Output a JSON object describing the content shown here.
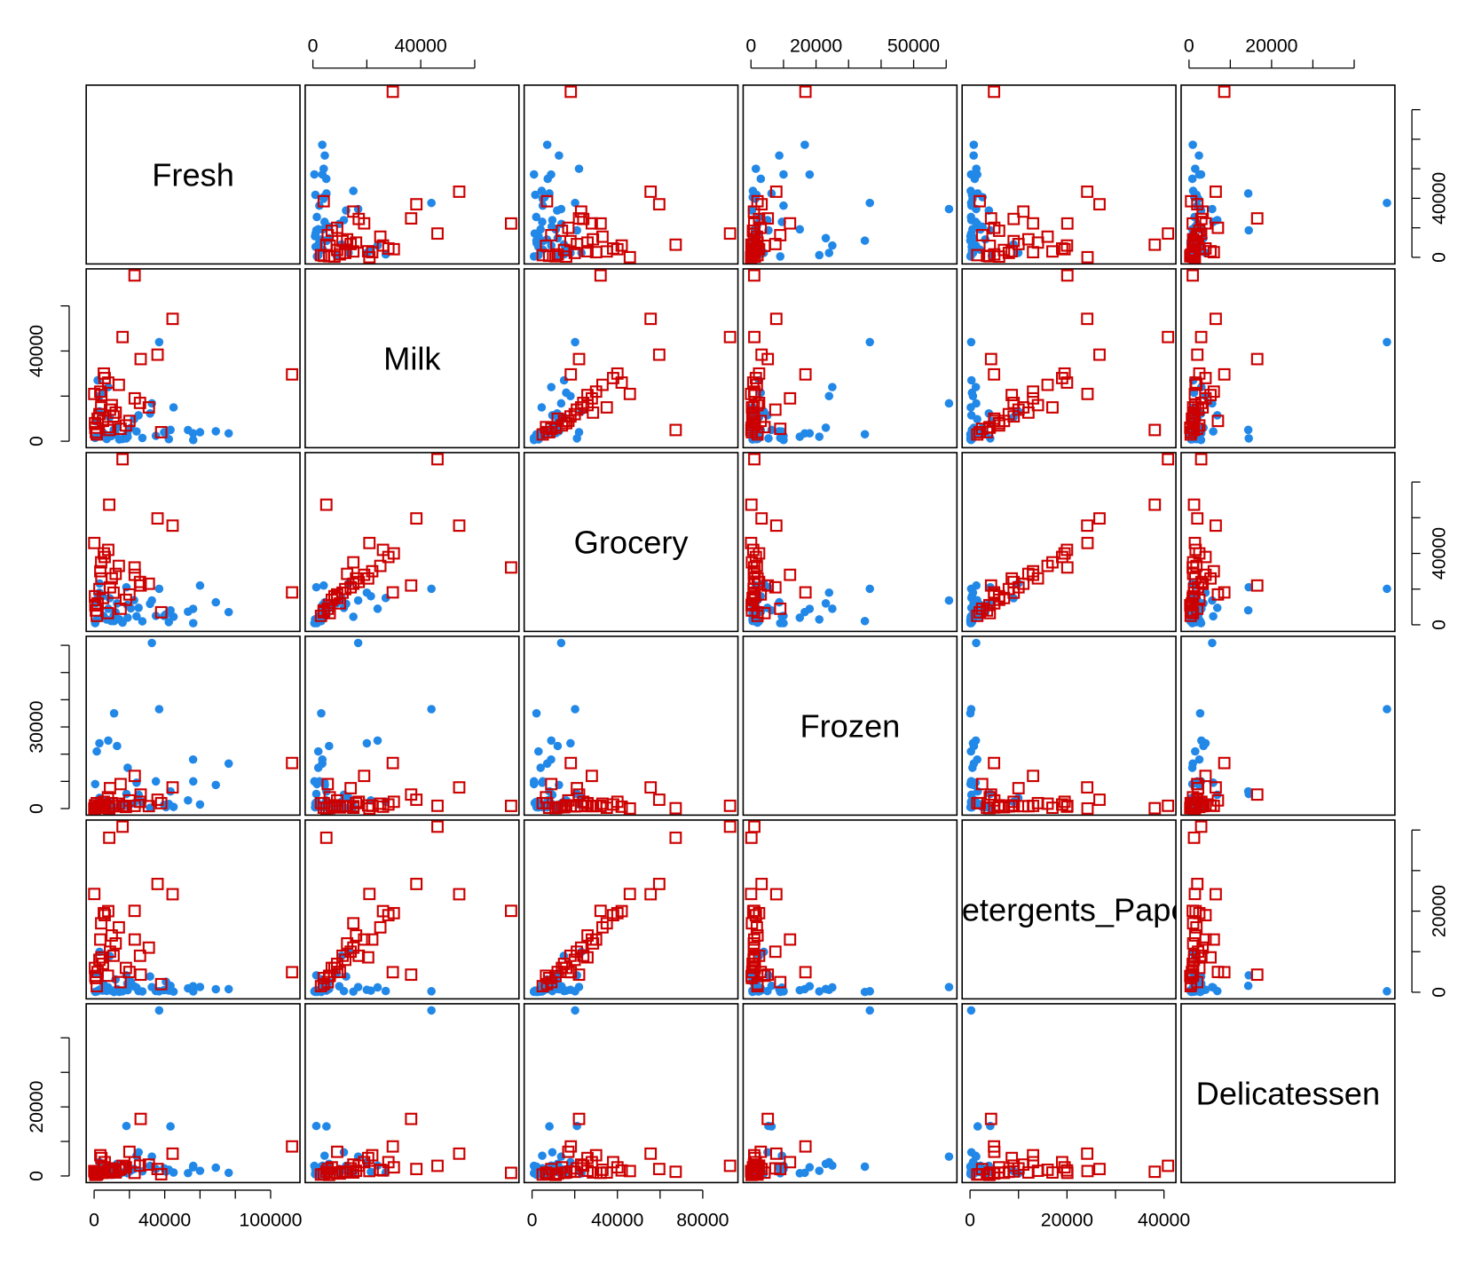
{
  "chart_data": {
    "type": "scatter-matrix",
    "variables": [
      {
        "name": "Fresh",
        "lim": [
          -4483,
          116637
        ],
        "xticks": [
          0,
          {
            "value": 20000,
            "label": null
          },
          40000,
          {
            "value": 60000,
            "label": null
          },
          {
            "value": 80000,
            "label": null
          },
          100000
        ],
        "yticks": [
          0,
          {
            "value": 20000,
            "label": null
          },
          40000,
          {
            "value": 60000,
            "label": null
          },
          {
            "value": 80000,
            "label": null
          },
          {
            "value": 100000,
            "label": null
          }
        ]
      },
      {
        "name": "Milk",
        "lim": [
          -2862,
          76415
        ],
        "xticks": [
          0,
          {
            "value": 20000,
            "label": null
          },
          40000,
          {
            "value": 60000,
            "label": null
          }
        ],
        "yticks": [
          0,
          {
            "value": 20000,
            "label": null
          },
          40000,
          {
            "value": 60000,
            "label": null
          }
        ]
      },
      {
        "name": "Grocery",
        "lim": [
          -3708,
          96491
        ],
        "xticks": [
          0,
          {
            "value": 20000,
            "label": null
          },
          40000,
          {
            "value": 60000,
            "label": null
          },
          80000
        ],
        "yticks": [
          0,
          {
            "value": 20000,
            "label": null
          },
          40000,
          {
            "value": 60000,
            "label": null
          },
          {
            "value": 80000,
            "label": null
          }
        ]
      },
      {
        "name": "Frozen",
        "lim": [
          -2409,
          63303
        ],
        "xticks": [
          0,
          {
            "value": 10000,
            "label": null
          },
          20000,
          {
            "value": 30000,
            "label": null
          },
          {
            "value": 40000,
            "label": null
          },
          50000,
          {
            "value": 60000,
            "label": null
          }
        ],
        "yticks": [
          0,
          {
            "value": 10000,
            "label": null
          },
          {
            "value": 20000,
            "label": null
          },
          30000,
          {
            "value": 40000,
            "label": null
          },
          {
            "value": 50000,
            "label": null
          },
          {
            "value": 60000,
            "label": null
          }
        ]
      },
      {
        "name": "Detergents_Paper",
        "lim": [
          -1630,
          42460
        ],
        "xticks": [
          0,
          {
            "value": 10000,
            "label": null
          },
          20000,
          {
            "value": 30000,
            "label": null
          },
          40000
        ],
        "yticks": [
          0,
          {
            "value": 10000,
            "label": null
          },
          20000,
          {
            "value": 30000,
            "label": null
          },
          {
            "value": 40000,
            "label": null
          }
        ]
      },
      {
        "name": "Delicatessen",
        "lim": [
          -1915,
          49861
        ],
        "xticks": [
          0,
          {
            "value": 10000,
            "label": null
          },
          20000,
          {
            "value": 30000,
            "label": null
          },
          {
            "value": 40000,
            "label": null
          }
        ],
        "yticks": [
          0,
          {
            "value": 10000,
            "label": null
          },
          20000,
          {
            "value": 30000,
            "label": null
          },
          {
            "value": 40000,
            "label": null
          }
        ]
      }
    ],
    "groups": [
      {
        "color": "#2288e8",
        "marker": "circle",
        "rows": [
          [
            32717,
            16784,
            13626,
            60869,
            1272,
            5609
          ],
          [
            36847,
            43950,
            20170,
            36534,
            239,
            47943
          ],
          [
            11314,
            3090,
            2062,
            35009,
            71,
            2698
          ],
          [
            76237,
            3473,
            7102,
            16538,
            778,
            918
          ],
          [
            68951,
            4411,
            12609,
            8692,
            751,
            2406
          ],
          [
            56159,
            555,
            902,
            10002,
            212,
            2916
          ],
          [
            56082,
            3504,
            8906,
            18028,
            1480,
            2498
          ],
          [
            53205,
            4959,
            7336,
            3012,
            967,
            818
          ],
          [
            43265,
            5025,
            8117,
            6312,
            1579,
            14351
          ],
          [
            18291,
            1266,
            21042,
            5373,
            4173,
            14472
          ],
          [
            40721,
            3916,
            5876,
            532,
            2587,
            1278
          ],
          [
            42312,
            926,
            1510,
            1718,
            410,
            1819
          ],
          [
            39679,
            3944,
            4955,
            1364,
            523,
            2235
          ],
          [
            31714,
            12319,
            11757,
            287,
            3881,
            2931
          ],
          [
            27329,
            1449,
            1947,
            2436,
            204,
            1333
          ],
          [
            25203,
            11487,
            9490,
            5065,
            284,
            6854
          ],
          [
            24025,
            4332,
            4757,
            9510,
            1145,
            5864
          ],
          [
            22647,
            9776,
            13779,
            1970,
            1477,
            2032
          ],
          [
            20782,
            5921,
            9212,
            1759,
            2568,
            1553
          ],
          [
            18815,
            3610,
            11107,
            1148,
            2134,
            2963
          ],
          [
            16117,
            1011,
            1234,
            2025,
            250,
            1016
          ],
          [
            14276,
            803,
            3045,
            485,
            100,
            518
          ],
          [
            12126,
            3199,
            6975,
            480,
            3140,
            545
          ],
          [
            11092,
            5008,
            5249,
            453,
            392,
            373
          ],
          [
            9670,
            2280,
            2112,
            520,
            402,
            347
          ],
          [
            8797,
            10646,
            14886,
            2471,
            8969,
            1438
          ],
          [
            7107,
            1012,
            2974,
            806,
            355,
            1043
          ],
          [
            5264,
            3683,
            5005,
            1057,
            2024,
            1130
          ],
          [
            3067,
            13240,
            23127,
            3941,
            9959,
            731
          ],
          [
            1020,
            8816,
            12121,
            134,
            4508,
            1080
          ],
          [
            2000,
            27000,
            15000,
            2500,
            300,
            1000
          ],
          [
            3000,
            20000,
            18000,
            24000,
            600,
            4000
          ],
          [
            8000,
            24000,
            9000,
            25000,
            1200,
            3000
          ],
          [
            1500,
            2000,
            3000,
            21000,
            200,
            1500
          ],
          [
            4800,
            21500,
            16000,
            3000,
            400,
            1200
          ],
          [
            600,
            1500,
            900,
            9000,
            100,
            800
          ],
          [
            19000,
            2000,
            4000,
            15000,
            500,
            800
          ],
          [
            13000,
            6000,
            12000,
            23000,
            800,
            3500
          ],
          [
            35000,
            2400,
            5000,
            10000,
            300,
            2000
          ],
          [
            45000,
            15000,
            4500,
            600,
            150,
            1000
          ],
          [
            60000,
            4000,
            22000,
            1500,
            1300,
            1500
          ]
        ]
      },
      {
        "color": "#cc0000",
        "marker": "square",
        "rows": [
          [
            112151,
            29627,
            18148,
            16745,
            4948,
            8550
          ],
          [
            22925,
            73498,
            32114,
            987,
            20070,
            903
          ],
          [
            16117,
            46197,
            92780,
            1026,
            40827,
            2944
          ],
          [
            44466,
            54259,
            55571,
            7782,
            24171,
            6465
          ],
          [
            35942,
            38369,
            59598,
            3254,
            26701,
            2017
          ],
          [
            85,
            20959,
            45828,
            36,
            24231,
            1423
          ],
          [
            26373,
            36423,
            22019,
            5154,
            4337,
            16523
          ],
          [
            8565,
            4980,
            67298,
            131,
            38102,
            1215
          ],
          [
            12205,
            12697,
            28540,
            869,
            12034,
            1009
          ],
          [
            4113,
            20484,
            25957,
            1158,
            8604,
            5206
          ],
          [
            7823,
            6245,
            6544,
            4154,
            4074,
            964
          ],
          [
            10000,
            16000,
            26000,
            2000,
            14000,
            1500
          ],
          [
            3000,
            12000,
            20000,
            800,
            8000,
            1200
          ],
          [
            18000,
            7000,
            14000,
            600,
            6000,
            2500
          ],
          [
            5000,
            9000,
            15000,
            500,
            7000,
            900
          ],
          [
            1000,
            4000,
            8000,
            300,
            3500,
            500
          ],
          [
            26000,
            17000,
            24000,
            2500,
            9000,
            3000
          ],
          [
            6000,
            28000,
            38000,
            1500,
            19000,
            4000
          ],
          [
            3500,
            22000,
            30000,
            1000,
            13000,
            6000
          ],
          [
            9000,
            14000,
            21000,
            7500,
            10000,
            2200
          ],
          [
            14000,
            25000,
            33000,
            1800,
            16000,
            1800
          ],
          [
            2000,
            10000,
            12000,
            400,
            5000,
            700
          ],
          [
            700,
            6000,
            11000,
            200,
            4000,
            300
          ],
          [
            20000,
            9000,
            17000,
            3000,
            5000,
            7000
          ],
          [
            11000,
            11000,
            18000,
            900,
            9000,
            1300
          ],
          [
            38000,
            4000,
            7000,
            2000,
            2000,
            500
          ],
          [
            5500,
            30000,
            40000,
            2500,
            19500,
            2500
          ],
          [
            4000,
            15000,
            35000,
            300,
            17000,
            1000
          ],
          [
            15000,
            5500,
            9000,
            9000,
            2500,
            2000
          ],
          [
            1500,
            3000,
            5000,
            2000,
            1500,
            400
          ],
          [
            31000,
            15000,
            23000,
            900,
            11000,
            3300
          ],
          [
            23000,
            19000,
            28000,
            12000,
            13000,
            4000
          ],
          [
            8000,
            26000,
            42000,
            700,
            20000,
            1600
          ],
          [
            500,
            8000,
            16000,
            1200,
            6000,
            1000
          ]
        ]
      }
    ]
  }
}
